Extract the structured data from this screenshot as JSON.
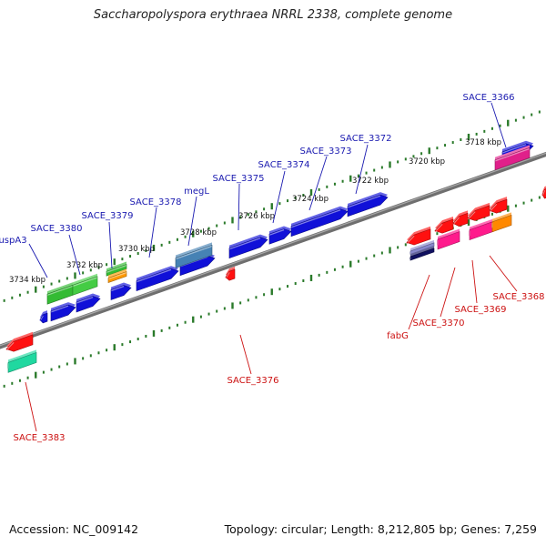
{
  "title": "Saccharopolyspora erythraea NRRL 2338, complete genome",
  "footer": {
    "accession": "Accession: NC_009142",
    "topology": "Topology: circular; Length: 8,212,805 bp; Genes: 7,259"
  },
  "colors": {
    "forward_label": "#1a1ab0",
    "reverse_label": "#cc1111",
    "backbone": "#808080",
    "tick": "#2a7a2a"
  },
  "scale_labels": [
    "3734 kbp",
    "3732 kbp",
    "3730 kbp",
    "3728 kbp",
    "3726 kbp",
    "3724 kbp",
    "3722 kbp",
    "3720 kbp",
    "3718 kbp"
  ],
  "forward_genes": [
    "uspA3",
    "SACE_3380",
    "SACE_3379",
    "SACE_3378",
    "megL",
    "SACE_3375",
    "SACE_3374",
    "SACE_3373",
    "SACE_3372",
    "SACE_3366"
  ],
  "reverse_genes": [
    "SACE_3383",
    "SACE_3376",
    "fabG",
    "SACE_3370",
    "SACE_3369",
    "SACE_3368"
  ]
}
